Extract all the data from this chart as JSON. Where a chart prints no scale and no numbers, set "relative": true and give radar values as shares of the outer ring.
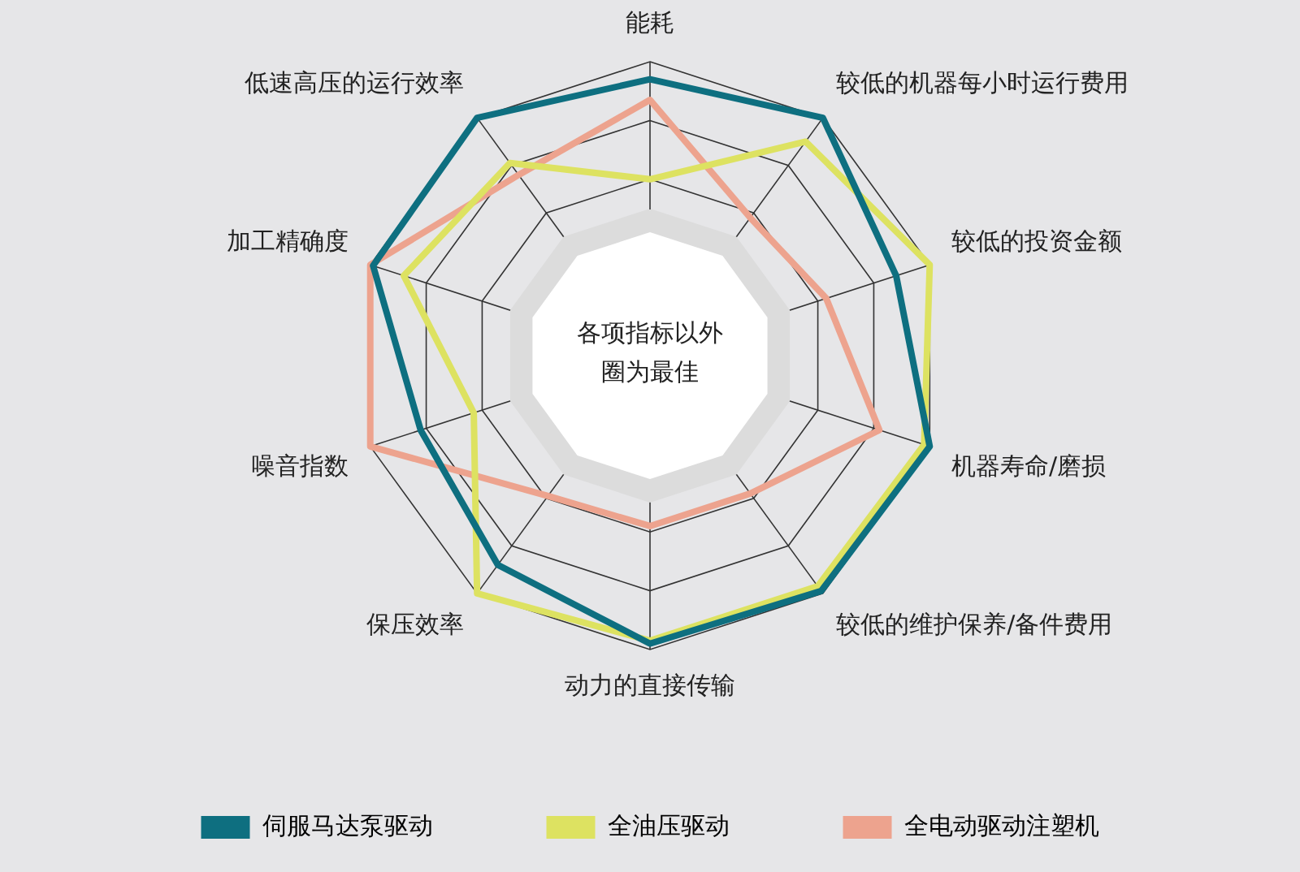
{
  "chart_data": {
    "type": "radar",
    "relative": true,
    "grid": true,
    "legend": "bottom",
    "categories": [
      "能耗",
      "较低的机器每小时运行费用",
      "较低的投资金额",
      "机器寿命/磨损",
      "较低的维护保养/备件费用",
      "动力的直接传输",
      "保压效率",
      "噪音指数",
      "加工精确度",
      "低速高压的运行效率"
    ],
    "series": [
      {
        "name": "伺服马达泵驱动",
        "color": "#0e6f80",
        "values": [
          0.94,
          1.0,
          0.88,
          1.0,
          0.99,
          0.98,
          0.88,
          0.82,
          0.99,
          1.0
        ]
      },
      {
        "name": "全油压驱动",
        "color": "#dde261",
        "values": [
          0.6,
          0.9,
          1.0,
          0.98,
          0.97,
          0.97,
          1.0,
          0.63,
          0.88,
          0.81
        ]
      },
      {
        "name": "全电动驱动注塑机",
        "color": "#eda38e",
        "values": [
          0.87,
          0.58,
          0.63,
          0.82,
          0.58,
          0.58,
          0.59,
          1.0,
          1.0,
          0.76
        ]
      }
    ],
    "annotations": [
      "各项指标以外圈为最佳"
    ]
  }
}
